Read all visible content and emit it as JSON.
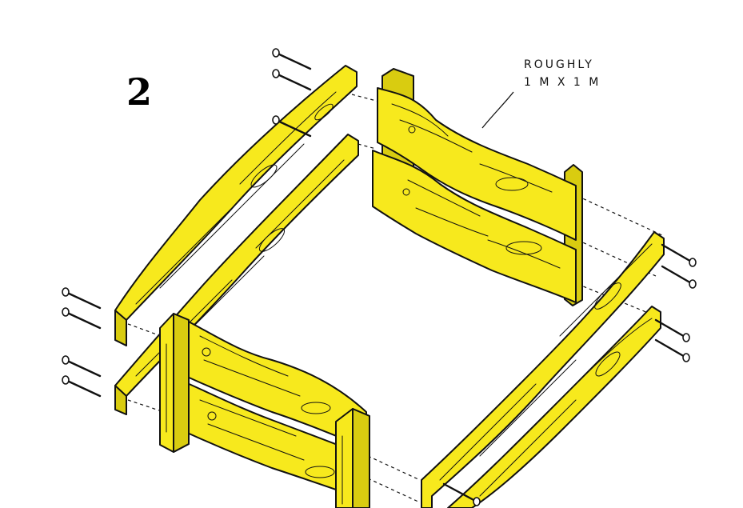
{
  "step": {
    "number": "2"
  },
  "annotation": {
    "line1": "ROUGHLY",
    "line2": "1 M X 1 M"
  },
  "colors": {
    "wood": "#f7e91d",
    "ink": "#111111",
    "background": "#ffffff"
  },
  "parts": {
    "end_panels": 2,
    "loose_side_boards": 4,
    "screws": 12
  }
}
